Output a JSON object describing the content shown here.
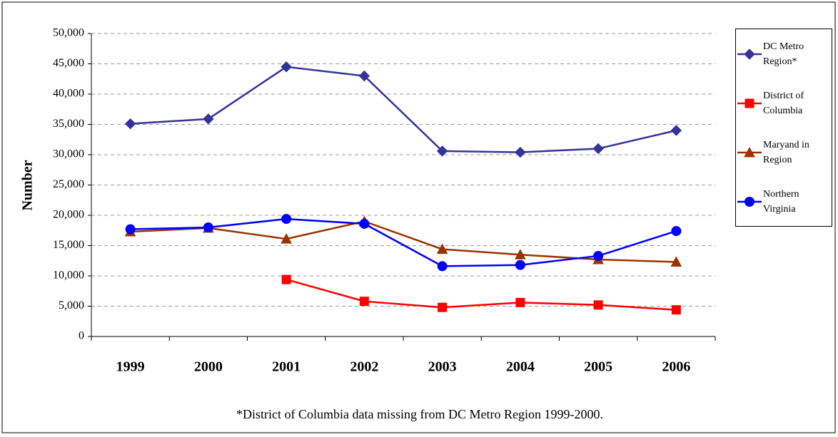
{
  "chart_data": {
    "type": "line",
    "y_label": "Number",
    "footnote": "*District of Columbia data missing from DC Metro Region 1999-2000.",
    "categories": [
      "1999",
      "2000",
      "2001",
      "2002",
      "2003",
      "2004",
      "2005",
      "2006"
    ],
    "series": [
      {
        "name": "DC Metro Region*",
        "color": "#333399",
        "marker": "diamond",
        "values": [
          35100,
          35900,
          44500,
          43000,
          30600,
          30400,
          31000,
          34000
        ]
      },
      {
        "name": "District of Columbia",
        "color": "#ff0000",
        "marker": "square",
        "values": [
          null,
          null,
          9400,
          5800,
          4800,
          5600,
          5200,
          4400
        ]
      },
      {
        "name": "Maryand in Region",
        "color": "#993300",
        "marker": "triangle",
        "values": [
          17300,
          17900,
          16100,
          19000,
          14400,
          13500,
          12700,
          12300
        ]
      },
      {
        "name": "Northern Virginia",
        "color": "#0000ff",
        "marker": "circle",
        "values": [
          17700,
          18000,
          19400,
          18600,
          11600,
          11800,
          13300,
          17400
        ]
      }
    ],
    "ylim": [
      0,
      50000
    ],
    "yticks": [
      0,
      {
        "value": 5000,
        "label": "5,000"
      },
      {
        "value": 10000,
        "label": "10,000"
      },
      {
        "value": 15000,
        "label": "15,000"
      },
      {
        "value": 20000,
        "label": "20,000"
      },
      {
        "value": 25000,
        "label": "25,000"
      },
      {
        "value": 30000,
        "label": "30,000"
      },
      {
        "value": 35000,
        "label": "35,000"
      },
      {
        "value": 40000,
        "label": "40,000"
      },
      {
        "value": 45000,
        "label": "45,000"
      },
      {
        "value": 50000,
        "label": "50,000"
      }
    ],
    "grid": true,
    "legend": "right"
  }
}
